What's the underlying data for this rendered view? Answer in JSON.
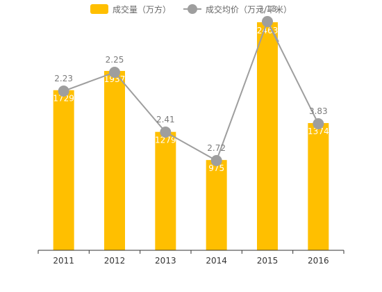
{
  "legend": {
    "bar_label": "成交量（万方）",
    "line_label": "成交均价（万元/平米）"
  },
  "colors": {
    "bar": "#FFBF00",
    "line": "#9E9E9E",
    "marker": "#9E9E9E",
    "bar_label_text": "#ffffff",
    "line_label_text": "#7a7a7a",
    "axis": "#333333"
  },
  "chart_data": {
    "type": "bar",
    "categories": [
      "2011",
      "2012",
      "2013",
      "2014",
      "2015",
      "2016"
    ],
    "series": [
      {
        "name": "成交量（万方）",
        "type": "bar",
        "values": [
          1729,
          1937,
          1279,
          975,
          2463,
          1374
        ]
      },
      {
        "name": "成交均价（万元/平米）",
        "type": "line",
        "values": [
          2.23,
          2.25,
          2.41,
          2.72,
          3.13,
          3.83
        ]
      }
    ],
    "bar_labels": [
      "1729",
      "1937",
      "1279",
      "975",
      "2463",
      "1374"
    ],
    "line_labels": [
      "2.23",
      "2.25",
      "2.41",
      "2.72",
      "3.13",
      "3.83"
    ],
    "legend_position": "top-center",
    "grid": false
  }
}
